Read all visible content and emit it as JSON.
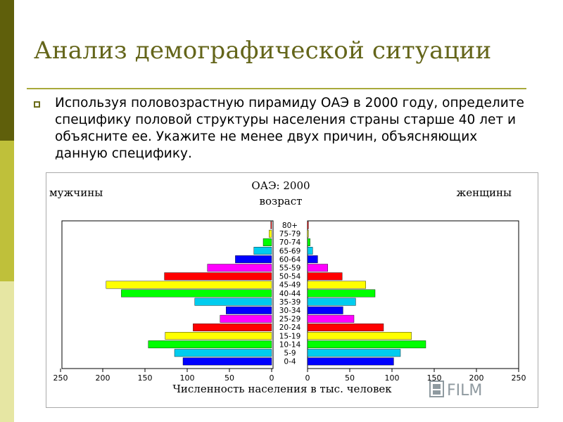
{
  "slide": {
    "title": "Анализ демографической ситуации",
    "bullet_text": "Используя половозрастную пирамиду ОАЭ в 2000 году, определите специфику половой структуры населения страны старше 40 лет и объясните ее. Укажите не менее двух причин, объясняющих данную специфику."
  },
  "watermark": {
    "text": "FILM",
    "icon": "film-icon",
    "color": "#8f9aa0"
  },
  "chart_data": {
    "type": "bar",
    "orientation": "horizontal",
    "title": "ОАЭ: 2000",
    "subtitle": "возраст",
    "left_label": "мужчины",
    "right_label": "женщины",
    "xlabel": "Численность населения в тыс. человек",
    "xlim": [
      0,
      250
    ],
    "x_ticks": [
      "250",
      "200",
      "150",
      "100",
      "50",
      "0",
      "0",
      "50",
      "100",
      "150",
      "200",
      "250"
    ],
    "categories": [
      "80+",
      "75-79",
      "70-74",
      "65-69",
      "60-64",
      "55-59",
      "50-54",
      "45-49",
      "40-44",
      "35-39",
      "30-34",
      "25-29",
      "20-24",
      "15-19",
      "10-14",
      "5-9",
      "0-4"
    ],
    "colors": [
      "#ff0000",
      "#ffff00",
      "#00ff00",
      "#00ccee",
      "#0000ff",
      "#ff00ff",
      "#ff0000",
      "#ffff00",
      "#00ff00",
      "#00ccee",
      "#0000ff",
      "#ff00ff",
      "#ff0000",
      "#ffff00",
      "#00ff00",
      "#00ccee",
      "#0000ff"
    ],
    "series": [
      {
        "name": "мужчины",
        "values": [
          1,
          3,
          10,
          21,
          43,
          76,
          127,
          196,
          178,
          91,
          54,
          61,
          93,
          126,
          146,
          115,
          105
        ]
      },
      {
        "name": "женщины",
        "values": [
          1,
          1,
          3,
          6,
          12,
          24,
          41,
          69,
          80,
          57,
          42,
          55,
          90,
          123,
          140,
          110,
          102
        ]
      }
    ]
  }
}
